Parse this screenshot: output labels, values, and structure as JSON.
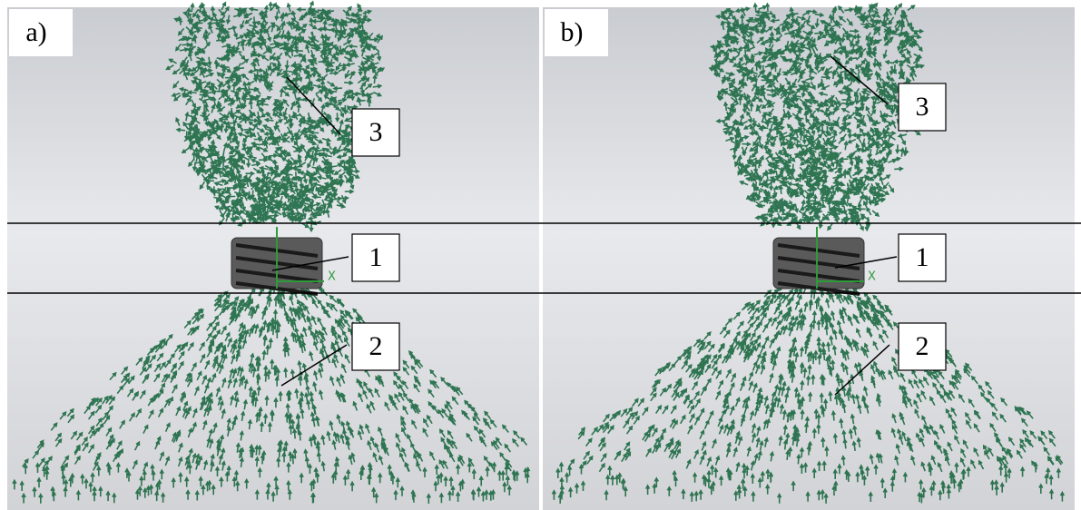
{
  "panels": [
    {
      "label": "a)",
      "callouts": [
        "3",
        "1",
        "2"
      ],
      "axis_label": "X"
    },
    {
      "label": "b)",
      "callouts": [
        "3",
        "1",
        "2"
      ],
      "axis_label": "X"
    }
  ]
}
